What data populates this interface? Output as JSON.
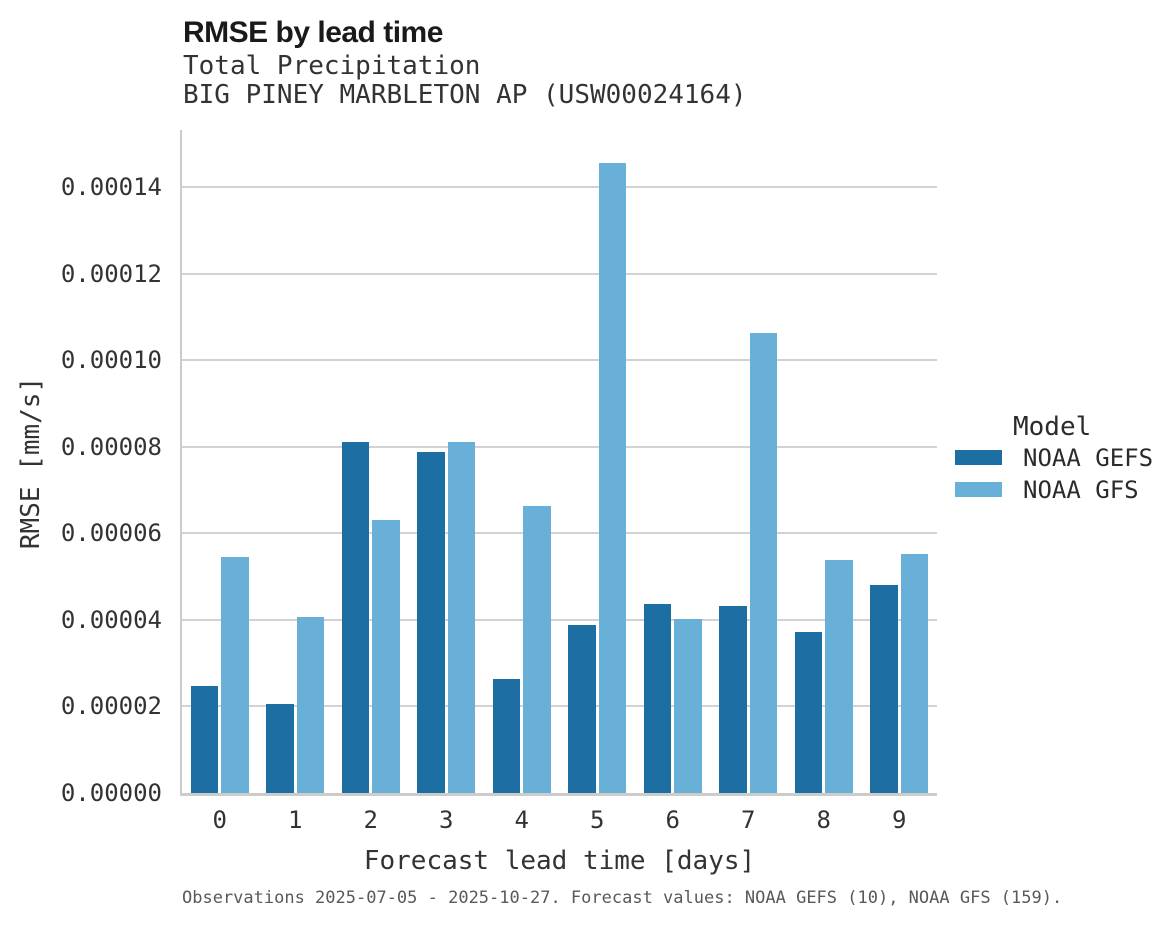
{
  "header": {
    "title": "RMSE by lead time",
    "subtitle1": "Total Precipitation",
    "subtitle2": "BIG PINEY MARBLETON AP (USW00024164)"
  },
  "caption": "Observations 2025-07-05 - 2025-10-27. Forecast values: NOAA GEFS (10), NOAA GFS (159).",
  "legend": {
    "title": "Model",
    "items": [
      {
        "label": "NOAA GEFS",
        "color": "#1d6fa3"
      },
      {
        "label": "NOAA GFS",
        "color": "#69b0d9"
      }
    ]
  },
  "colors": {
    "gefs_dark_blue": "#1d6fa3",
    "gfs_light_blue": "#69b0d9",
    "gridline_gray": "#d2d2d2",
    "axis_gray": "#cccccc"
  },
  "chart_data": {
    "type": "bar",
    "title": "RMSE by lead time",
    "subtitle": [
      "Total Precipitation",
      "BIG PINEY MARBLETON AP (USW00024164)"
    ],
    "xlabel": "Forecast lead time [days]",
    "ylabel": "RMSE [mm/s]",
    "categories": [
      "0",
      "1",
      "2",
      "3",
      "4",
      "5",
      "6",
      "7",
      "8",
      "9"
    ],
    "series": [
      {
        "name": "NOAA GEFS",
        "color": "#1d6fa3",
        "values": [
          2.48e-05,
          2.05e-05,
          8.12e-05,
          7.88e-05,
          2.63e-05,
          3.88e-05,
          4.37e-05,
          4.32e-05,
          3.72e-05,
          4.8e-05
        ]
      },
      {
        "name": "NOAA GFS",
        "color": "#69b0d9",
        "values": [
          5.45e-05,
          4.07e-05,
          6.3e-05,
          8.12e-05,
          6.63e-05,
          0.0001456,
          4.02e-05,
          0.0001063,
          5.38e-05,
          5.52e-05
        ]
      }
    ],
    "yticks": {
      "labels": [
        "0.00000",
        "0.00002",
        "0.00004",
        "0.00006",
        "0.00008",
        "0.00010",
        "0.00012",
        "0.00014"
      ],
      "values": [
        0,
        2e-05,
        4e-05,
        6e-05,
        8e-05,
        0.0001,
        0.00012,
        0.00014
      ]
    },
    "ylim": [
      0,
      0.0001532
    ],
    "grid": true,
    "legend_position": "right"
  }
}
